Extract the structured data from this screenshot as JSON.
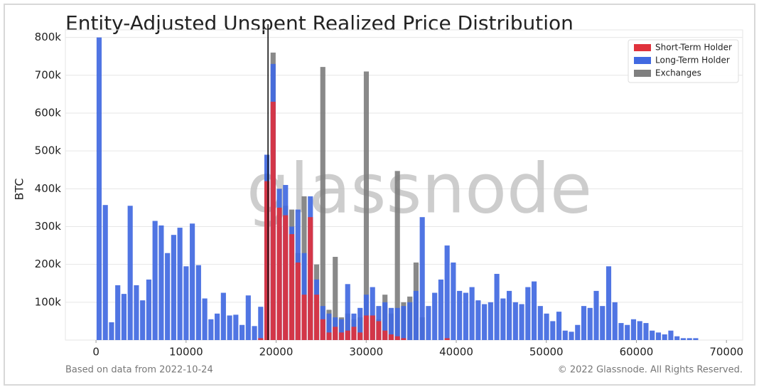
{
  "chart_data": {
    "type": "histogram",
    "title": "Entity-Adjusted Unspent Realized Price Distribution",
    "ylabel": "BTC",
    "watermark": "glassnode",
    "footer_left": "Based on data from 2022-10-24",
    "footer_right": "© 2022 Glassnode. All Rights Reserved.",
    "legend": "upper right",
    "grid": true,
    "vline": 19100,
    "xlim": [
      -3400,
      71800
    ],
    "ylim": [
      0,
      820000
    ],
    "xticks": [
      0,
      10000,
      20000,
      30000,
      40000,
      50000,
      60000,
      70000
    ],
    "yticks": [
      {
        "value": 100000,
        "label": "100k"
      },
      {
        "value": 200000,
        "label": "200k"
      },
      {
        "value": 300000,
        "label": "300k"
      },
      {
        "value": 400000,
        "label": "400k"
      },
      {
        "value": 500000,
        "label": "500k"
      },
      {
        "value": 600000,
        "label": "600k"
      },
      {
        "value": 700000,
        "label": "700k"
      },
      {
        "value": 800000,
        "label": "800k"
      }
    ],
    "bins": [
      0,
      690,
      1380,
      2070,
      2760,
      3450,
      4140,
      4830,
      5520,
      6210,
      6900,
      7590,
      8280,
      8970,
      9660,
      10350,
      11040,
      11730,
      12420,
      13110,
      13800,
      14490,
      15180,
      15870,
      16560,
      17250,
      17940,
      18630,
      19320,
      20010,
      20700,
      21390,
      22080,
      22770,
      23460,
      24150,
      24840,
      25530,
      26220,
      26910,
      27600,
      28290,
      28980,
      29670,
      30360,
      31050,
      31740,
      32430,
      33120,
      33810,
      34500,
      35190,
      35880,
      36570,
      37260,
      37950,
      38640,
      39330,
      40020,
      40710,
      41400,
      42090,
      42780,
      43470,
      44160,
      44850,
      45540,
      46230,
      46920,
      47610,
      48300,
      48990,
      49680,
      50370,
      51060,
      51750,
      52440,
      53130,
      53820,
      54510,
      55200,
      55890,
      56580,
      57270,
      57960,
      58650,
      59340,
      60030,
      60720,
      61410,
      62100,
      62790,
      63480,
      64170,
      64860,
      65550,
      66240,
      66930,
      67620,
      68310,
      69000
    ],
    "series": [
      {
        "name": "Exchanges",
        "color": "#7f7f7f",
        "values": [
          0,
          0,
          0,
          0,
          0,
          0,
          0,
          0,
          0,
          0,
          0,
          0,
          0,
          0,
          0,
          0,
          0,
          0,
          0,
          0,
          0,
          0,
          0,
          0,
          0,
          0,
          0,
          440000,
          760000,
          300000,
          355000,
          345000,
          230000,
          380000,
          160000,
          200000,
          722000,
          80000,
          220000,
          60000,
          70000,
          55000,
          60000,
          710000,
          65000,
          55000,
          120000,
          70000,
          447000,
          100000,
          115000,
          205000,
          60000,
          0,
          0,
          0,
          0,
          0,
          0,
          0,
          0,
          0,
          0,
          0,
          0,
          0,
          0,
          0,
          0,
          0,
          0,
          0,
          0,
          0,
          0,
          0,
          0,
          0,
          0,
          0,
          0,
          0,
          0,
          0,
          0,
          0,
          0,
          0,
          0,
          0,
          0,
          0,
          0,
          0,
          0,
          0,
          0,
          0,
          0,
          0
        ]
      },
      {
        "name": "Long-Term Holder",
        "color": "#4169e1",
        "values": [
          800000,
          357000,
          47000,
          145000,
          122000,
          355000,
          145000,
          105000,
          160000,
          315000,
          303000,
          230000,
          278000,
          297000,
          195000,
          308000,
          198000,
          110000,
          55000,
          70000,
          125000,
          65000,
          67000,
          40000,
          118000,
          37000,
          88000,
          490000,
          730000,
          400000,
          410000,
          300000,
          345000,
          230000,
          380000,
          160000,
          90000,
          70000,
          60000,
          55000,
          148000,
          70000,
          85000,
          120000,
          140000,
          90000,
          100000,
          85000,
          85000,
          90000,
          100000,
          130000,
          325000,
          90000,
          125000,
          160000,
          250000,
          205000,
          130000,
          125000,
          140000,
          105000,
          95000,
          100000,
          175000,
          110000,
          130000,
          100000,
          95000,
          140000,
          155000,
          90000,
          70000,
          50000,
          75000,
          25000,
          22000,
          40000,
          90000,
          85000,
          130000,
          90000,
          195000,
          100000,
          45000,
          40000,
          55000,
          50000,
          45000,
          25000,
          20000,
          15000,
          25000,
          10000,
          5000,
          5000,
          5000,
          0,
          0,
          0
        ]
      },
      {
        "name": "Short-Term Holder",
        "color": "#e0323c",
        "values": [
          0,
          0,
          0,
          0,
          0,
          0,
          0,
          0,
          0,
          0,
          0,
          0,
          0,
          0,
          0,
          0,
          0,
          0,
          0,
          0,
          0,
          0,
          0,
          0,
          0,
          0,
          5000,
          420000,
          630000,
          350000,
          330000,
          280000,
          205000,
          120000,
          325000,
          120000,
          55000,
          20000,
          35000,
          20000,
          25000,
          35000,
          20000,
          65000,
          65000,
          50000,
          25000,
          15000,
          10000,
          5000,
          0,
          0,
          0,
          0,
          0,
          0,
          5000,
          0,
          0,
          0,
          0,
          0,
          0,
          0,
          0,
          0,
          0,
          0,
          0,
          0,
          0,
          0,
          0,
          0,
          0,
          0,
          0,
          0,
          0,
          0,
          0,
          0,
          0,
          0,
          0,
          0,
          0,
          0,
          0,
          0,
          0,
          0,
          0,
          0,
          0,
          0,
          0,
          0,
          0,
          0
        ]
      }
    ]
  }
}
